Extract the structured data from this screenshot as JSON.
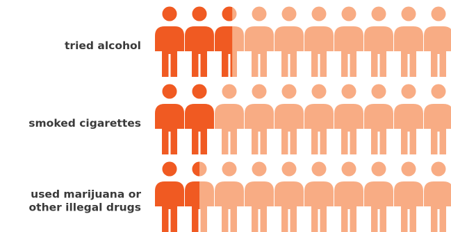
{
  "chart_data": {
    "type": "pictograph",
    "icons_per_row": 10,
    "colors": {
      "highlight": "#F05A22",
      "base": "#F8AC84"
    },
    "rows": [
      {
        "label_lines": [
          "tried alcohol"
        ],
        "value": 2.6
      },
      {
        "label_lines": [
          "smoked cigarettes"
        ],
        "value": 2.0
      },
      {
        "label_lines": [
          "used marijuana or",
          "other illegal drugs"
        ],
        "value": 1.5
      }
    ]
  }
}
